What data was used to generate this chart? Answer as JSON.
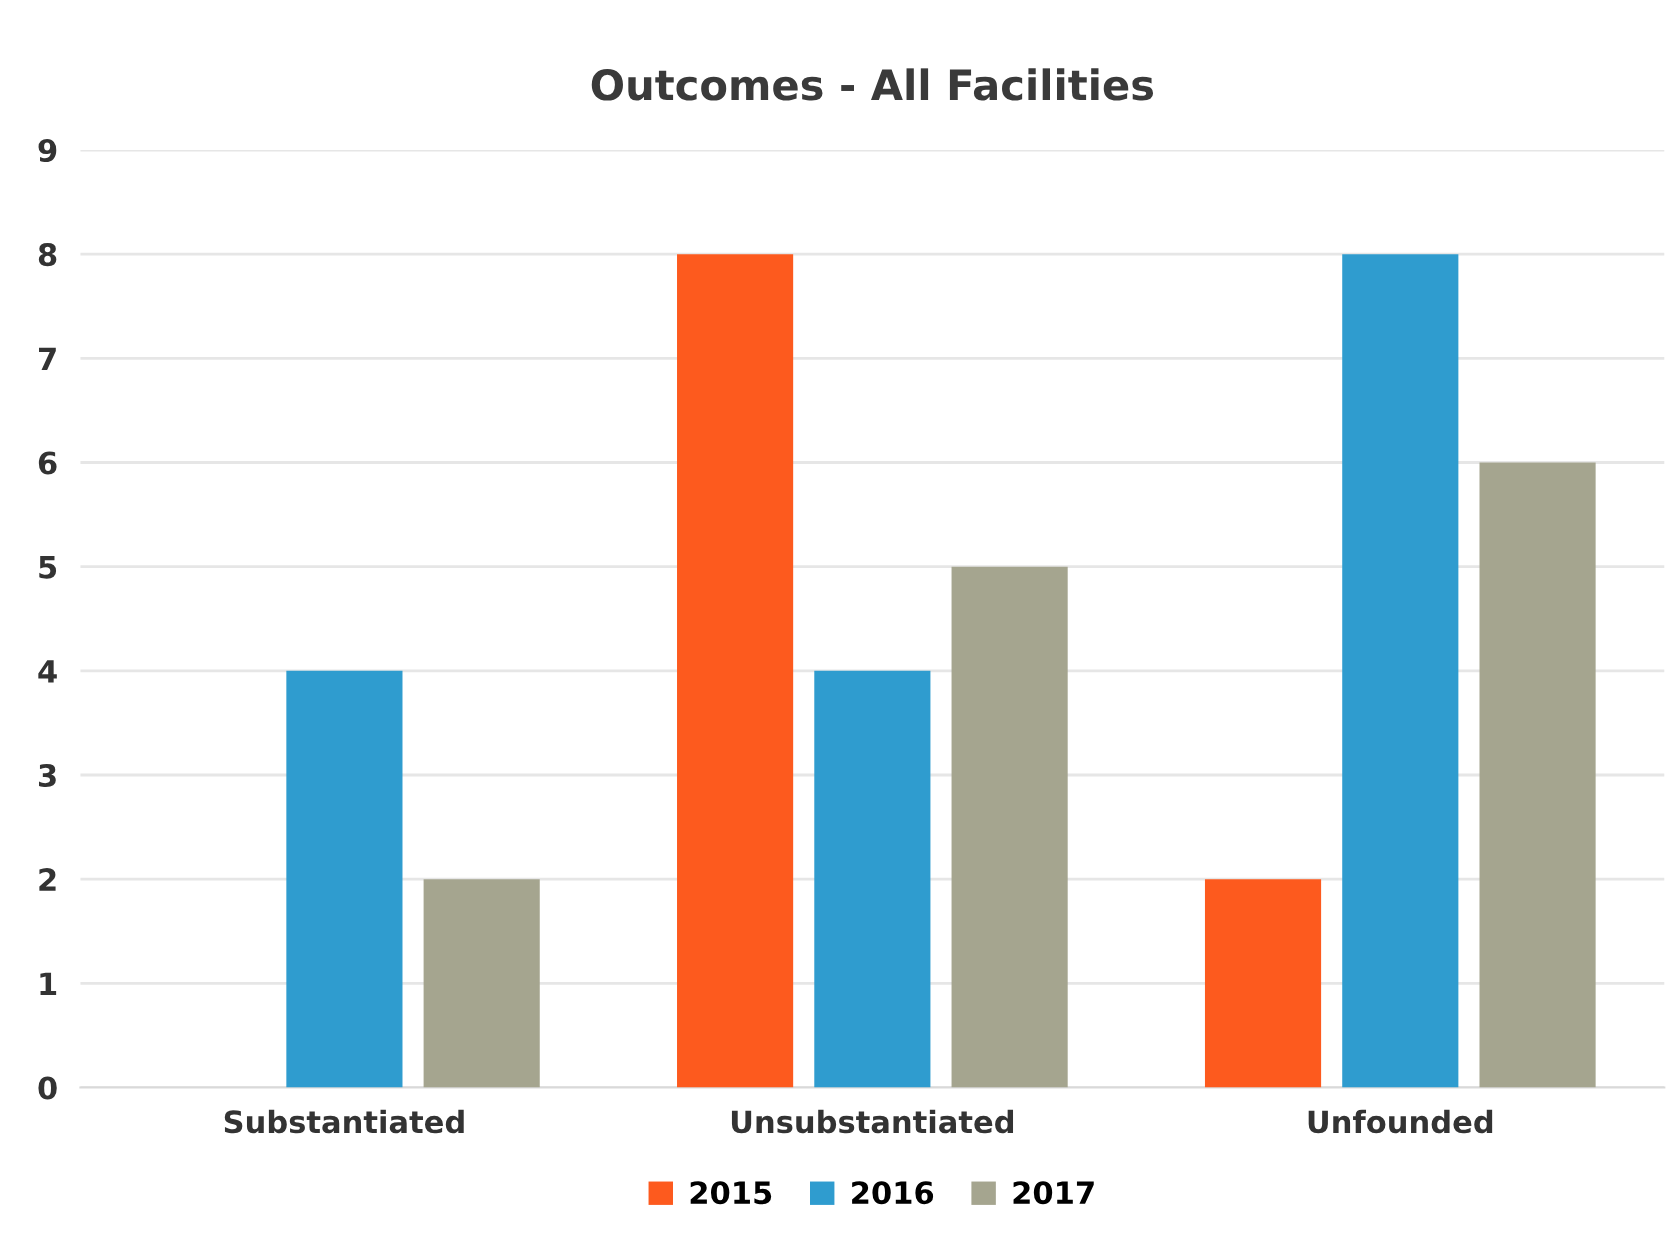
{
  "chart_data": {
    "type": "bar",
    "title": "Outcomes - All Facilities",
    "categories": [
      "Substantiated",
      "Unsubstantiated",
      "Unfounded"
    ],
    "series": [
      {
        "name": "2015",
        "color": "#fd5a1e",
        "values": [
          0,
          8,
          2
        ]
      },
      {
        "name": "2016",
        "color": "#2f9ccf",
        "values": [
          4,
          4,
          8
        ]
      },
      {
        "name": "2017",
        "color": "#a5a58f",
        "values": [
          2,
          5,
          6
        ]
      }
    ],
    "ylim": [
      0,
      9
    ],
    "yticks": [
      0,
      1,
      2,
      3,
      4,
      5,
      6,
      7,
      8,
      9
    ],
    "grid": "y",
    "legend": "bottom"
  }
}
